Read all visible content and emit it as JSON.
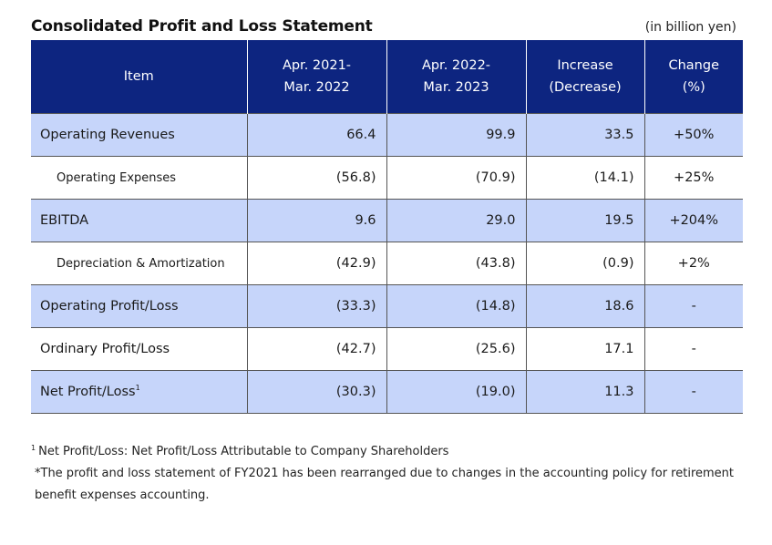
{
  "title": "Consolidated Profit and Loss Statement",
  "unit": "(in billion yen)",
  "header": {
    "item": "Item",
    "col1": [
      "Apr. 2021-",
      "Mar. 2022"
    ],
    "col2": [
      "Apr. 2022-",
      "Mar. 2023"
    ],
    "col3": [
      "Increase",
      "(Decrease)"
    ],
    "col4": [
      "Change",
      "(%)"
    ]
  },
  "rows": [
    {
      "item": "Operating Revenues",
      "fy2021": "66.4",
      "fy2022": "99.9",
      "diff": "33.5",
      "change": "+50%"
    },
    {
      "item": "Operating Expenses",
      "fy2021": "(56.8)",
      "fy2022": "(70.9)",
      "diff": "(14.1)",
      "change": "+25%"
    },
    {
      "item": "EBITDA",
      "fy2021": "9.6",
      "fy2022": "29.0",
      "diff": "19.5",
      "change": "+204%"
    },
    {
      "item": "Depreciation & Amortization",
      "fy2021": "(42.9)",
      "fy2022": "(43.8)",
      "diff": "(0.9)",
      "change": "+2%"
    },
    {
      "item": "Operating Profit/Loss",
      "fy2021": "(33.3)",
      "fy2022": "(14.8)",
      "diff": "18.6",
      "change": "-"
    },
    {
      "item": "Ordinary Profit/Loss",
      "fy2021": "(42.7)",
      "fy2022": "(25.6)",
      "diff": "17.1",
      "change": "-"
    },
    {
      "item": "Net Profit/Loss",
      "item_sup": "1",
      "fy2021": "(30.3)",
      "fy2022": "(19.0)",
      "diff": "11.3",
      "change": "-"
    }
  ],
  "notes": {
    "footnote_marker": "1",
    "footnote": "Net Profit/Loss: Net Profit/Loss Attributable to Company Shareholders",
    "note": "*The profit and loss statement of FY2021 has been rearranged due to changes in the accounting policy for retirement benefit expenses accounting."
  }
}
